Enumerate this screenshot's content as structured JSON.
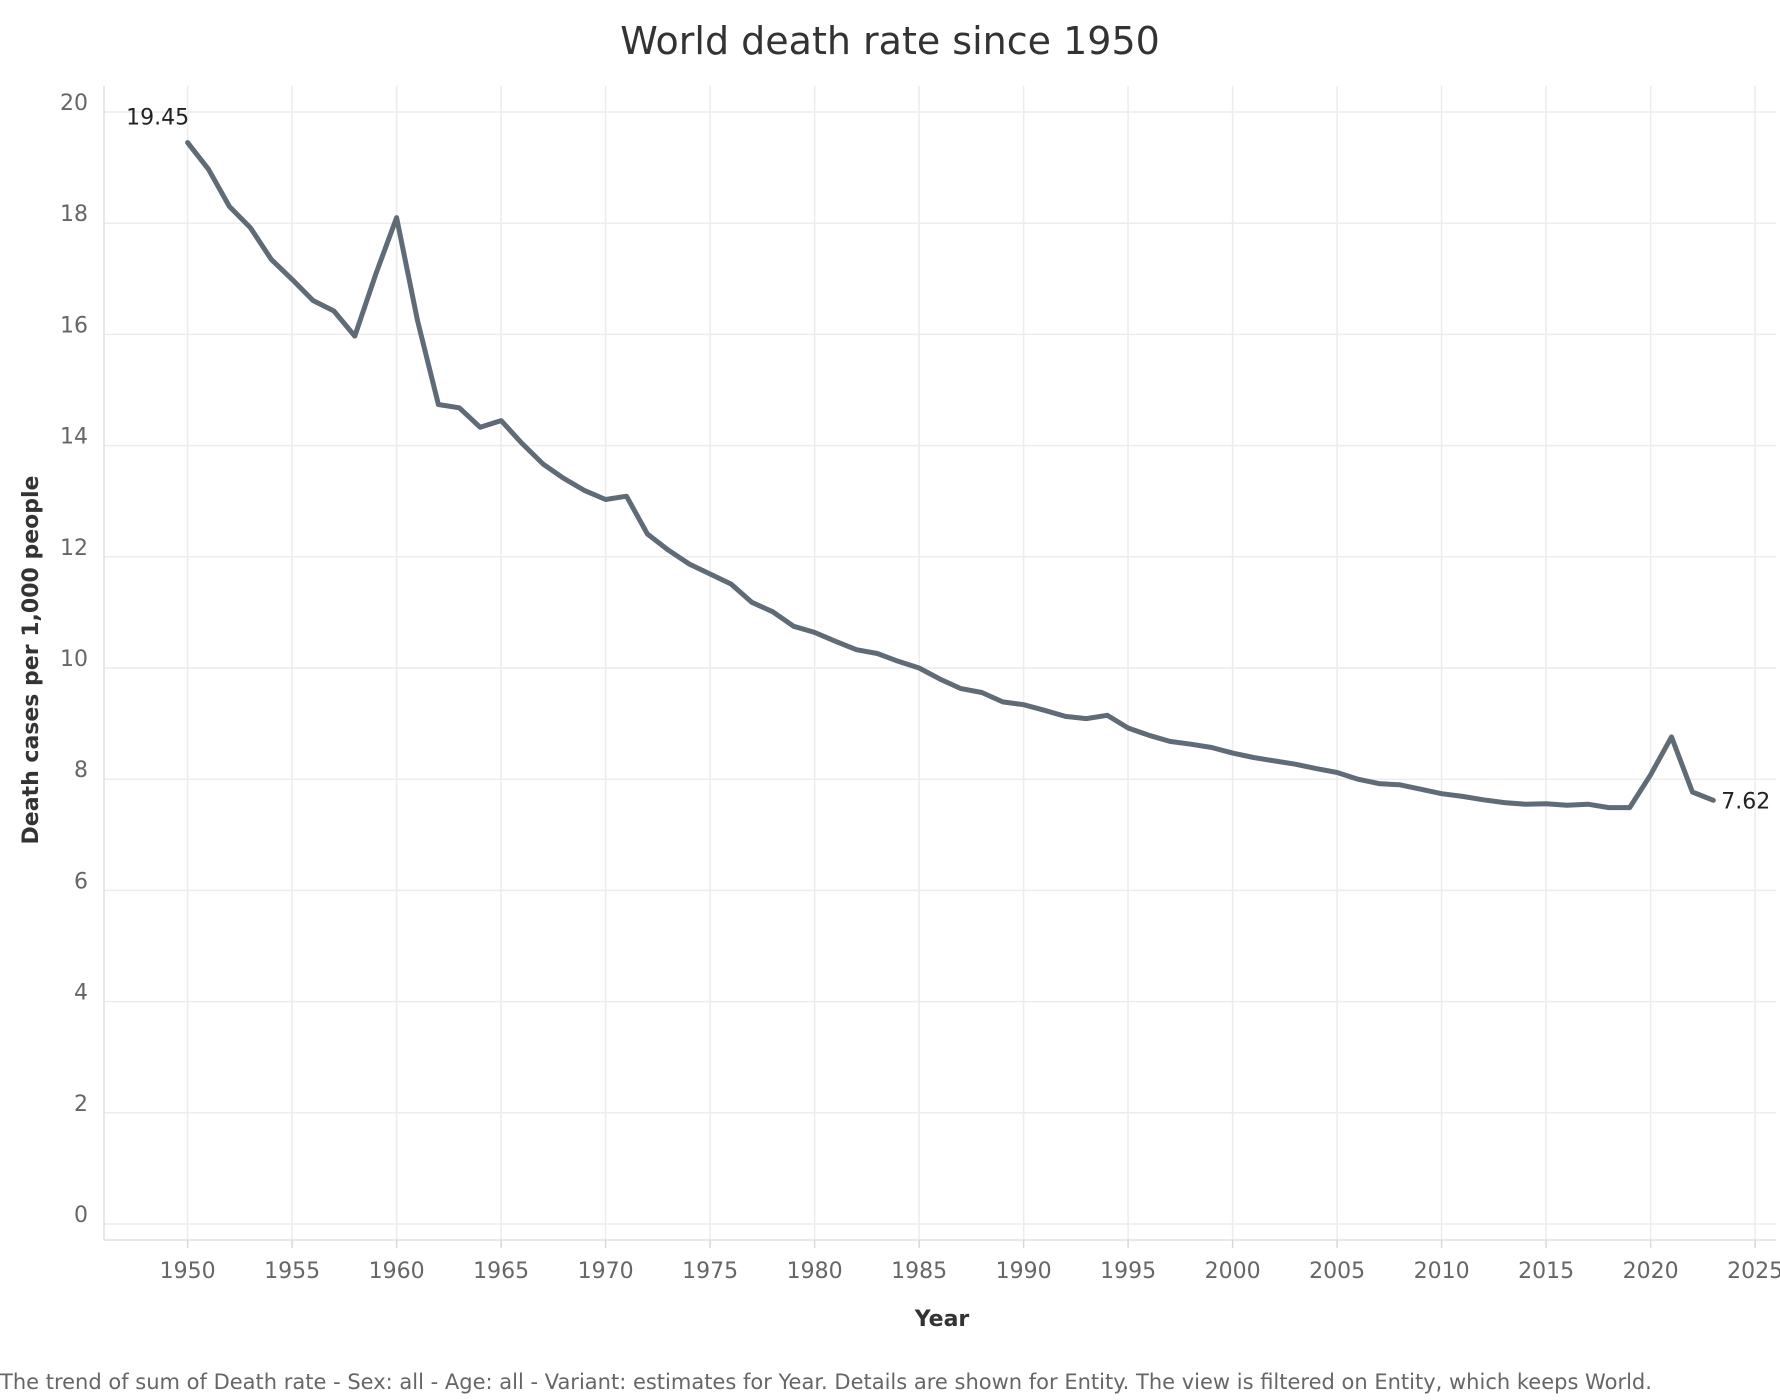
{
  "chart_data": {
    "type": "line",
    "title": "World death rate since 1950",
    "xlabel": "Year",
    "ylabel": "Death cases per 1,000 people",
    "xlim": [
      1946,
      2026
    ],
    "ylim": [
      0,
      20
    ],
    "x_ticks": [
      1950,
      1955,
      1960,
      1965,
      1970,
      1975,
      1980,
      1985,
      1990,
      1995,
      2000,
      2005,
      2010,
      2015,
      2020,
      2025
    ],
    "y_ticks": [
      0,
      2,
      4,
      6,
      8,
      10,
      12,
      14,
      16,
      18,
      20
    ],
    "grid": true,
    "line_color": "#5f6b77",
    "series": [
      {
        "x": [
          1950,
          1951,
          1952,
          1953,
          1954,
          1955,
          1956,
          1957,
          1958,
          1959,
          1960,
          1961,
          1962,
          1963,
          1964,
          1965,
          1966,
          1967,
          1968,
          1969,
          1970,
          1971,
          1972,
          1973,
          1974,
          1975,
          1976,
          1977,
          1978,
          1979,
          1980,
          1981,
          1982,
          1983,
          1984,
          1985,
          1986,
          1987,
          1988,
          1989,
          1990,
          1991,
          1992,
          1993,
          1994,
          1995,
          1996,
          1997,
          1998,
          1999,
          2000,
          2001,
          2002,
          2003,
          2004,
          2005,
          2006,
          2007,
          2008,
          2009,
          2010,
          2011,
          2012,
          2013,
          2014,
          2015,
          2016,
          2017,
          2018,
          2019,
          2020,
          2021,
          2022,
          2023
        ],
        "values": [
          19.45,
          18.97,
          18.3,
          17.92,
          17.35,
          16.99,
          16.61,
          16.42,
          15.97,
          17.08,
          18.1,
          16.25,
          14.74,
          14.68,
          14.33,
          14.45,
          14.04,
          13.67,
          13.41,
          13.19,
          13.03,
          13.09,
          12.41,
          12.12,
          11.87,
          11.69,
          11.51,
          11.18,
          11.01,
          10.75,
          10.64,
          10.48,
          10.33,
          10.26,
          10.12,
          10.0,
          9.8,
          9.63,
          9.56,
          9.39,
          9.34,
          9.24,
          9.13,
          9.09,
          9.15,
          8.92,
          8.79,
          8.68,
          8.63,
          8.57,
          8.47,
          8.39,
          8.33,
          8.27,
          8.19,
          8.12,
          8.0,
          7.92,
          7.9,
          7.82,
          7.74,
          7.69,
          7.63,
          7.58,
          7.55,
          7.56,
          7.53,
          7.55,
          7.49,
          7.49,
          8.08,
          8.76,
          7.77,
          7.62
        ]
      }
    ],
    "data_labels": [
      {
        "x": 1950,
        "y": 19.45,
        "text": "19.45"
      },
      {
        "x": 2023,
        "y": 7.62,
        "text": "7.62"
      }
    ]
  },
  "caption": "The trend of sum of Death rate - Sex: all - Age: all - Variant: estimates for Year.  Details are shown for Entity. The view is filtered on Entity, which keeps World."
}
